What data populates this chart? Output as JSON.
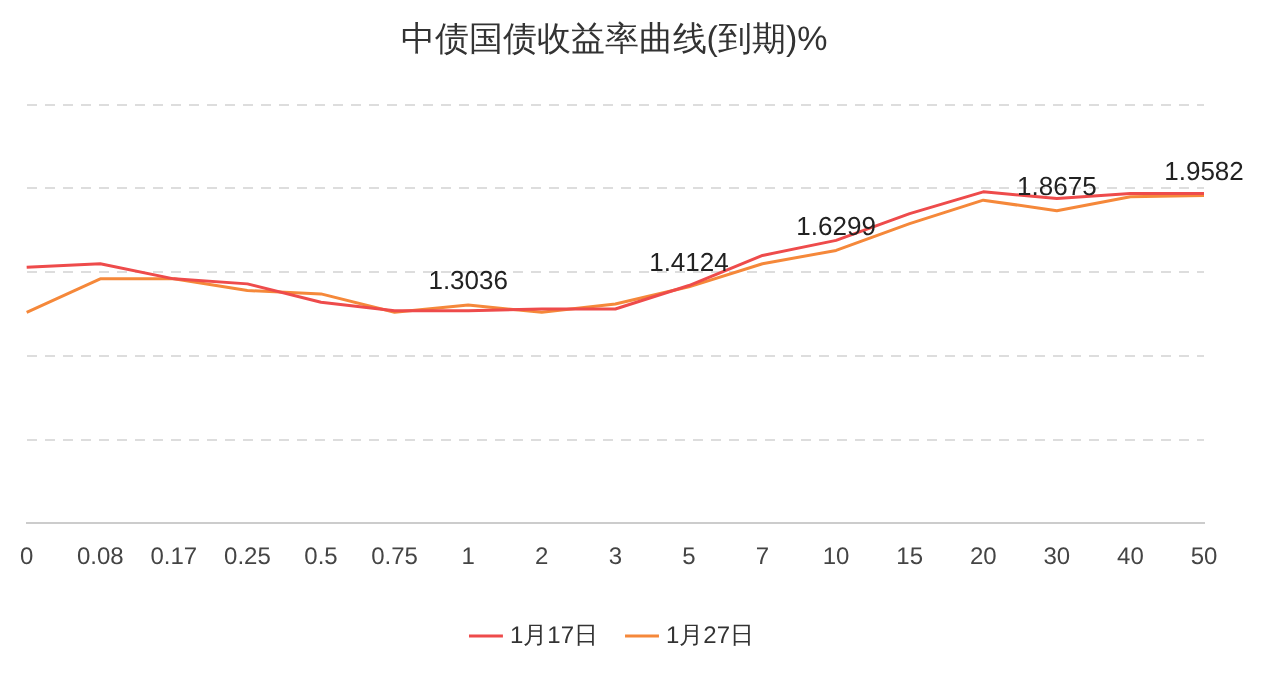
{
  "chart_data": {
    "type": "line",
    "title": "中债国债收益率曲线(到期)%",
    "categories": [
      "0",
      "0.08",
      "0.17",
      "0.25",
      "0.5",
      "0.75",
      "1",
      "2",
      "3",
      "5",
      "7",
      "10",
      "15",
      "20",
      "30",
      "40",
      "50"
    ],
    "series": [
      {
        "name": "1月17日",
        "color": "#ee4b4b",
        "values": [
          1.53,
          1.55,
          1.46,
          1.43,
          1.32,
          1.27,
          1.27,
          1.28,
          1.28,
          1.42,
          1.6,
          1.69,
          1.85,
          1.98,
          1.94,
          1.97,
          1.97
        ]
      },
      {
        "name": "1月27日",
        "color": "#f5883a",
        "values": [
          1.26,
          1.46,
          1.46,
          1.39,
          1.37,
          1.26,
          1.3036,
          1.26,
          1.31,
          1.4124,
          1.55,
          1.6299,
          1.79,
          1.93,
          1.8675,
          1.95,
          1.9582
        ],
        "value_labels": [
          null,
          null,
          null,
          null,
          null,
          null,
          "1.3036",
          null,
          null,
          "1.4124",
          null,
          "1.6299",
          null,
          null,
          "1.8675",
          null,
          "1.9582"
        ]
      }
    ],
    "ylim": [
      0,
      2.5
    ],
    "yticks": [
      0,
      0.5,
      1,
      1.5,
      2,
      2.5
    ],
    "tick_labels": "x",
    "grid": "y",
    "legend": "bottom",
    "marker": "none",
    "line_style": "solid"
  }
}
